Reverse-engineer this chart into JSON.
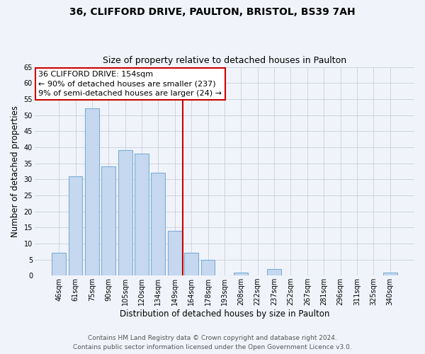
{
  "title": "36, CLIFFORD DRIVE, PAULTON, BRISTOL, BS39 7AH",
  "subtitle": "Size of property relative to detached houses in Paulton",
  "xlabel": "Distribution of detached houses by size in Paulton",
  "ylabel": "Number of detached properties",
  "bar_labels": [
    "46sqm",
    "61sqm",
    "75sqm",
    "90sqm",
    "105sqm",
    "120sqm",
    "134sqm",
    "149sqm",
    "164sqm",
    "178sqm",
    "193sqm",
    "208sqm",
    "222sqm",
    "237sqm",
    "252sqm",
    "267sqm",
    "281sqm",
    "296sqm",
    "311sqm",
    "325sqm",
    "340sqm"
  ],
  "bar_heights": [
    7,
    31,
    52,
    34,
    39,
    38,
    32,
    14,
    7,
    5,
    0,
    1,
    0,
    2,
    0,
    0,
    0,
    0,
    0,
    0,
    1
  ],
  "bar_color": "#c5d8f0",
  "bar_edge_color": "#7badd4",
  "vline_color": "#cc0000",
  "annotation_line1": "36 CLIFFORD DRIVE: 154sqm",
  "annotation_line2": "← 90% of detached houses are smaller (237)",
  "annotation_line3": "9% of semi-detached houses are larger (24) →",
  "annotation_box_color": "#ffffff",
  "annotation_box_edge_color": "#cc0000",
  "ylim": [
    0,
    65
  ],
  "yticks": [
    0,
    5,
    10,
    15,
    20,
    25,
    30,
    35,
    40,
    45,
    50,
    55,
    60,
    65
  ],
  "footer1": "Contains HM Land Registry data © Crown copyright and database right 2024.",
  "footer2": "Contains public sector information licensed under the Open Government Licence v3.0.",
  "title_fontsize": 10,
  "subtitle_fontsize": 9,
  "xlabel_fontsize": 8.5,
  "ylabel_fontsize": 8.5,
  "tick_fontsize": 7,
  "annotation_fontsize": 8,
  "footer_fontsize": 6.5,
  "bg_color": "#f0f4fa"
}
